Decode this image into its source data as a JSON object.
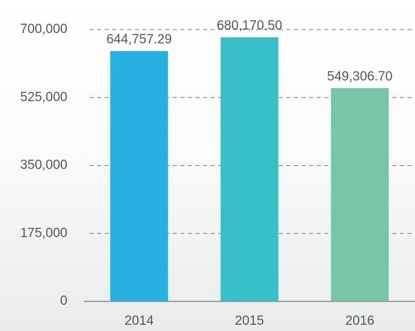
{
  "chart_data": {
    "type": "bar",
    "categories": [
      "2014",
      "2015",
      "2016"
    ],
    "values": [
      644757.29,
      680170.5,
      549306.7
    ],
    "value_labels": [
      "644,757.29",
      "680,170.50",
      "549,306.70"
    ],
    "colors": [
      "#26b1e1",
      "#37bfca",
      "#79c5a8"
    ],
    "ylim": [
      0,
      700000
    ],
    "yticks": [
      0,
      {
        "value": 175000,
        "label": "175,000"
      },
      {
        "value": 350000,
        "label": "350,000"
      },
      {
        "value": 525000,
        "label": "525,000"
      },
      {
        "value": 700000,
        "label": "700,000"
      }
    ],
    "grid": true
  }
}
